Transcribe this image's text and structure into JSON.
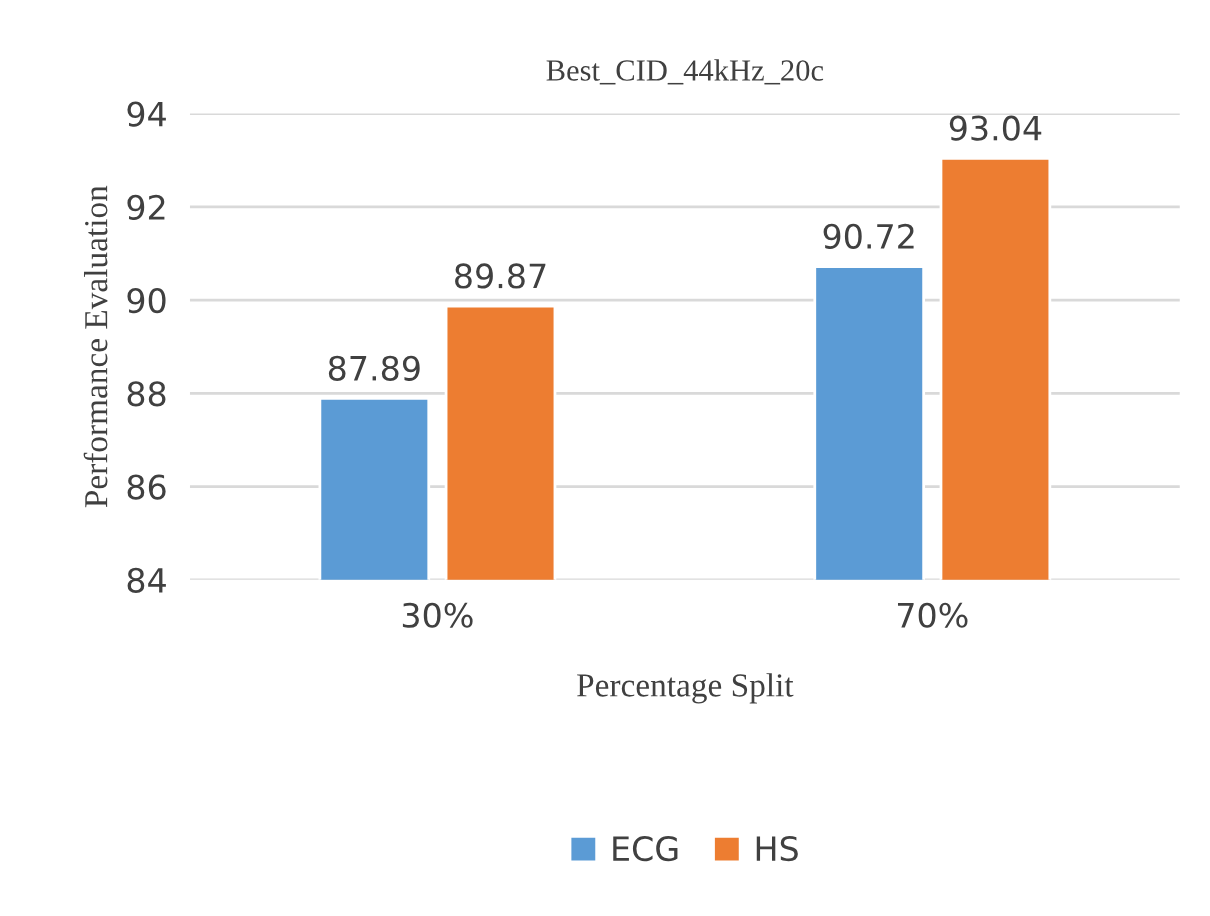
{
  "chart_data": {
    "type": "bar",
    "title": "Best_CID_44kHz_20c",
    "xlabel": "Percentage Split",
    "ylabel": "Performance Evaluation",
    "categories": [
      "30%",
      "70%"
    ],
    "series": [
      {
        "name": "ECG",
        "color": "#5b9bd5",
        "values": [
          87.89,
          90.72
        ]
      },
      {
        "name": "HS",
        "color": "#ed7d31",
        "values": [
          89.87,
          93.04
        ]
      }
    ],
    "ylim": [
      84,
      94
    ],
    "yticks": [
      84,
      86,
      88,
      90,
      92,
      94
    ],
    "grid": "y",
    "legend": "bottom",
    "data_labels": true
  }
}
